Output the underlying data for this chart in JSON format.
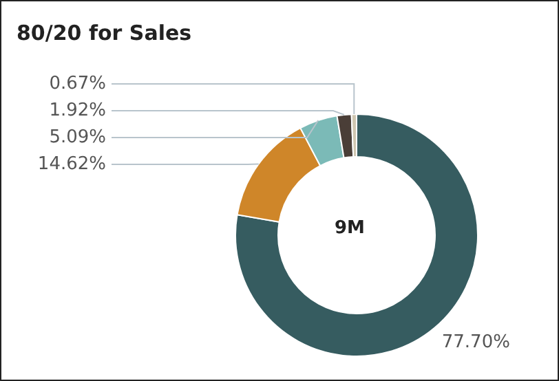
{
  "chart_data": {
    "type": "donut",
    "title": "80/20 for Sales",
    "categories": [
      null,
      null,
      null,
      null,
      null
    ],
    "values": [
      77.7,
      14.62,
      5.09,
      1.92,
      0.67
    ],
    "colors": [
      "#365c60",
      "#cf8629",
      "#7bbab7",
      "#4a3e37",
      "#cfc6b0"
    ],
    "value_labels": [
      "77.70%",
      "14.62%",
      "5.09%",
      "1.92%",
      "0.67%"
    ],
    "annotations": [
      "9M"
    ]
  }
}
